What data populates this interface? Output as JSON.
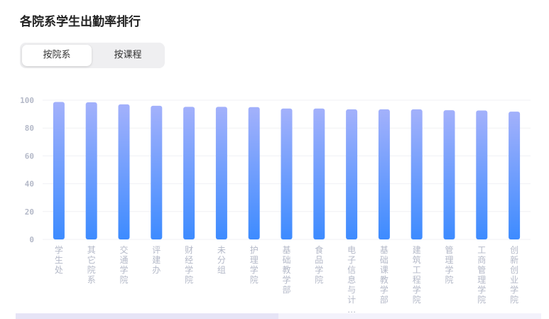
{
  "header": {
    "title": "各院系学生出勤率排行"
  },
  "toggle": {
    "options": [
      "按院系",
      "按课程"
    ],
    "selected": "按院系"
  },
  "chart_data": {
    "type": "bar",
    "categories": [
      "学生处",
      "其它院系",
      "交通学院",
      "评建办",
      "财经学院",
      "未分组",
      "护理学院",
      "基础教学部",
      "食品学院",
      "电子信息与计...",
      "基础课教学部",
      "建筑工程学院",
      "管理学院",
      "工商管理学院",
      "创新创业学院"
    ],
    "values": [
      98.7,
      98.5,
      97,
      96,
      95.2,
      95.2,
      95,
      94,
      94,
      93.4,
      93.4,
      93.4,
      92.8,
      92.6,
      91.8
    ],
    "ylim": [
      0,
      100
    ],
    "yticks": [
      0,
      20,
      40,
      60,
      80,
      100
    ],
    "grid": true,
    "colors": {
      "top": "#a3b1fb",
      "bottom": "#3d8bff",
      "axis_text": "#b4b9c8"
    }
  }
}
